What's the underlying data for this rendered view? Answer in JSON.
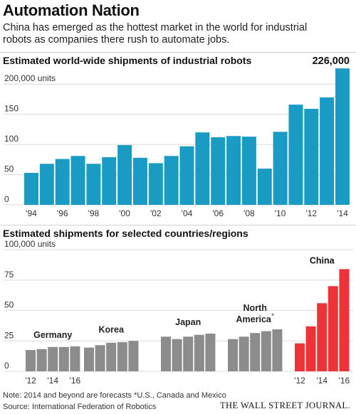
{
  "header": {
    "title": "Automation Nation",
    "subtitle": "China has emerged as the hottest market in the world for industrial robots as companies there rush to automate jobs."
  },
  "footer": {
    "note": "Note: 2014 and beyond are forecasts    *U.S., Canada and Mexico",
    "source": "Source: International Federation of Robotics",
    "brand": "THE WALL STREET JOURNAL."
  },
  "colors": {
    "blue": "#1a9bc4",
    "gray": "#8c8c8c",
    "red": "#ee3338",
    "grid": "#d9d9d9"
  },
  "chart_data": [
    {
      "type": "bar",
      "title": "Estimated world-wide shipments of industrial robots",
      "ylabel": "units",
      "ylim": [
        0,
        225000
      ],
      "yticks": [
        {
          "value": 0,
          "label": "0"
        },
        {
          "value": 50000,
          "label": "50"
        },
        {
          "value": 100000,
          "label": "100"
        },
        {
          "value": 150000,
          "label": "150"
        },
        {
          "value": 200000,
          "label": "200,000 units"
        }
      ],
      "categories": [
        1994,
        1995,
        1996,
        1997,
        1998,
        1999,
        2000,
        2001,
        2002,
        2003,
        2004,
        2005,
        2006,
        2007,
        2008,
        2009,
        2010,
        2011,
        2012,
        2013,
        2014
      ],
      "values": [
        53000,
        68000,
        76000,
        81000,
        68000,
        79000,
        99000,
        78000,
        69000,
        81000,
        97000,
        120000,
        112000,
        114000,
        113000,
        60000,
        121000,
        166000,
        159000,
        178000,
        226000
      ],
      "xtick_labels": [
        {
          "year": 1994,
          "label": "'94"
        },
        {
          "year": 1996,
          "label": "'96"
        },
        {
          "year": 1998,
          "label": "'98"
        },
        {
          "year": 2000,
          "label": "'00"
        },
        {
          "year": 2002,
          "label": "'02"
        },
        {
          "year": 2004,
          "label": "'04"
        },
        {
          "year": 2006,
          "label": "'06"
        },
        {
          "year": 2008,
          "label": "'08"
        },
        {
          "year": 2010,
          "label": "'10"
        },
        {
          "year": 2012,
          "label": "'12"
        },
        {
          "year": 2014,
          "label": "'14"
        }
      ],
      "annotations": [
        {
          "year": 2014,
          "text": "226,000"
        }
      ],
      "grid": true
    },
    {
      "type": "bar",
      "title": "Estimated shipments for selected countries/regions",
      "ylabel": "units",
      "ylim": [
        0,
        100000
      ],
      "yticks": [
        {
          "value": 0,
          "label": "0"
        },
        {
          "value": 25000,
          "label": "25"
        },
        {
          "value": 50000,
          "label": "50"
        },
        {
          "value": 75000,
          "label": "75"
        },
        {
          "value": 100000,
          "label": "100,000 units"
        }
      ],
      "x": [
        2012,
        2013,
        2014,
        2015,
        2016
      ],
      "series": [
        {
          "name": "Germany",
          "values": [
            17500,
            18300,
            20000,
            20000,
            20500
          ]
        },
        {
          "name": "Korea",
          "values": [
            19500,
            21500,
            23500,
            24000,
            25000
          ]
        },
        {
          "name": "Japan",
          "values": [
            28500,
            26500,
            28500,
            30000,
            31000
          ]
        },
        {
          "name": "North America*",
          "values": [
            26500,
            28500,
            31500,
            33000,
            34500
          ]
        },
        {
          "name": "China",
          "values": [
            23000,
            37000,
            56000,
            70000,
            84000
          ]
        }
      ],
      "xtick_labels": [
        "'12",
        "'14",
        "'16"
      ],
      "grid": true
    }
  ]
}
